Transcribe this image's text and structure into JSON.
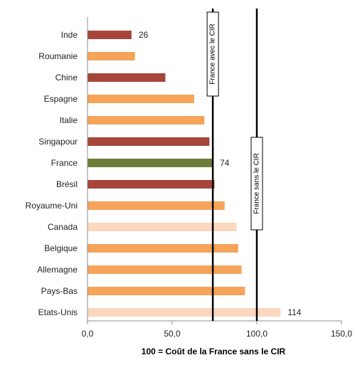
{
  "chart_data": {
    "type": "bar",
    "orientation": "horizontal",
    "categories": [
      "Inde",
      "Roumanie",
      "Chine",
      "Espagne",
      "Italie",
      "Singapour",
      "France",
      "Brésil",
      "Royaume-Uni",
      "Canada",
      "Belgique",
      "Allemagne",
      "Pays-Bas",
      "Etats-Unis"
    ],
    "values": [
      26,
      28,
      46,
      63,
      69,
      72,
      74,
      75,
      81,
      88,
      89,
      91,
      93,
      114
    ],
    "bar_colors": [
      "#a6463b",
      "#f5a45a",
      "#a6463b",
      "#f5a45a",
      "#f5a45a",
      "#a6463b",
      "#6d7c36",
      "#a6463b",
      "#f5a45a",
      "#fad7bd",
      "#f5a45a",
      "#f5a45a",
      "#f5a45a",
      "#fad7bd"
    ],
    "data_labels": [
      {
        "category": "Inde",
        "text": "26"
      },
      {
        "category": "France",
        "text": "74"
      },
      {
        "category": "Etats-Unis",
        "text": "114"
      }
    ],
    "xlim": [
      0,
      150
    ],
    "xticks": [
      "0,0",
      "50,0",
      "100,0",
      "150,0"
    ],
    "xlabel": "100 = Coût de la France sans le CIR",
    "reference_lines": [
      {
        "value": 74,
        "label": "France avec le CIR"
      },
      {
        "value": 100,
        "label": "France sans le CIR"
      }
    ],
    "grid": false
  }
}
